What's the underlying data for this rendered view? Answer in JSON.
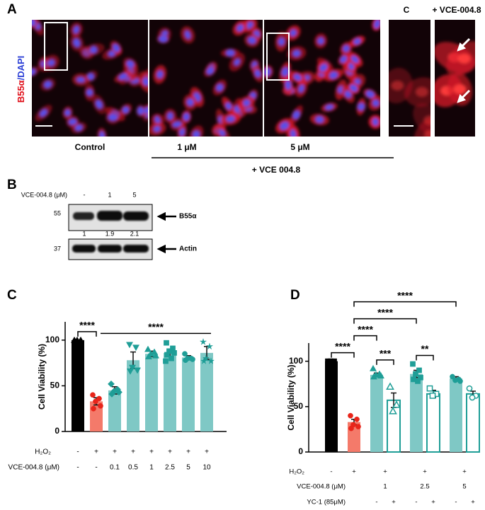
{
  "panel_a": {
    "label": "A",
    "stain": [
      "B55α",
      "/DAPI"
    ],
    "images": [
      "Control",
      "1 μM",
      "5 μM"
    ],
    "treatment": "+ VCE 004.8",
    "insets": [
      "C",
      "+ VCE-004.8"
    ]
  },
  "panel_b": {
    "label": "B",
    "dose_label": "VCE-004.8 (μM)",
    "lanes": [
      "-",
      "1",
      "5"
    ],
    "blots": [
      {
        "marker": 55,
        "target": "B55α",
        "quant": [
          1,
          1.9,
          2.1
        ]
      },
      {
        "marker": 37,
        "target": "Actin"
      }
    ]
  },
  "chart_data": [
    {
      "type": "bar",
      "panel": "C",
      "ylabel": "Cell Viability (%)",
      "ylim": [
        0,
        120
      ],
      "yticks": [
        0,
        50,
        100
      ],
      "rows": [
        "H₂O₂",
        "VCE-004.8 (μM)"
      ],
      "groups": [
        {
          "labels": [
            "-",
            "-"
          ],
          "bars": [
            {
              "value": 100,
              "error": 0,
              "color": "#000000",
              "point_color": "#000000",
              "hollow": false,
              "marker": "triangle-up",
              "points": [
                100,
                100,
                100
              ]
            }
          ]
        },
        {
          "labels": [
            "+",
            "-"
          ],
          "bars": [
            {
              "value": 33,
              "error": 4,
              "color": "#f47a6a",
              "point_color": "#e8251a",
              "hollow": false,
              "marker": "circle",
              "points": [
                40,
                36,
                33,
                28,
                25
              ]
            }
          ]
        },
        {
          "labels": [
            "+",
            "0.1"
          ],
          "bars": [
            {
              "value": 45,
              "error": 4,
              "color": "#7fc8c5",
              "point_color": "#1f9e97",
              "hollow": false,
              "marker": "diamond",
              "points": [
                52,
                46,
                44,
                43,
                41
              ]
            }
          ]
        },
        {
          "labels": [
            "+",
            "0.5"
          ],
          "bars": [
            {
              "value": 78,
              "error": 9,
              "color": "#7fc8c5",
              "point_color": "#1f9e97",
              "hollow": false,
              "marker": "triangle-down",
              "points": [
                95,
                92,
                70,
                67,
                66
              ]
            }
          ]
        },
        {
          "labels": [
            "+",
            "1"
          ],
          "bars": [
            {
              "value": 85,
              "error": 3,
              "color": "#7fc8c5",
              "point_color": "#1f9e97",
              "hollow": false,
              "marker": "triangle-up",
              "points": [
                90,
                87,
                85,
                83,
                82
              ]
            }
          ]
        },
        {
          "labels": [
            "+",
            "2.5"
          ],
          "bars": [
            {
              "value": 86,
              "error": 4,
              "color": "#7fc8c5",
              "point_color": "#1f9e97",
              "hollow": false,
              "marker": "square",
              "points": [
                97,
                91,
                88,
                86,
                84,
                80,
                77
              ]
            }
          ]
        },
        {
          "labels": [
            "+",
            "5"
          ],
          "bars": [
            {
              "value": 81,
              "error": 2,
              "color": "#7fc8c5",
              "point_color": "#1f9e97",
              "hollow": false,
              "marker": "circle",
              "points": [
                85,
                80,
                80,
                79,
                78
              ]
            }
          ]
        },
        {
          "labels": [
            "+",
            "10"
          ],
          "bars": [
            {
              "value": 86,
              "error": 7,
              "color": "#7fc8c5",
              "point_color": "#1f9e97",
              "hollow": false,
              "marker": "star",
              "points": [
                98,
                93,
                80,
                77,
                77
              ]
            }
          ]
        }
      ],
      "significance": [
        {
          "label": "****",
          "from": 0,
          "to": 1
        },
        {
          "label": "****",
          "from": 1,
          "to": 7,
          "ticks": false
        }
      ]
    },
    {
      "type": "bar",
      "panel": "D",
      "ylabel": "Cell Viability (%)",
      "ylim": [
        0,
        120
      ],
      "yticks": [
        0,
        50,
        100
      ],
      "rows": [
        "H₂O₂",
        "VCE-004.8 (μM)"
      ],
      "bar_row": "YC-1 (85μM)",
      "groups": [
        {
          "labels": [
            "-",
            null
          ],
          "bars": [
            {
              "label": null,
              "value": 100,
              "error": 0,
              "color": "#000000",
              "point_color": "#000000",
              "hollow": false,
              "marker": "square",
              "points": [
                100,
                100,
                100
              ]
            }
          ]
        },
        {
          "labels": [
            "+",
            null
          ],
          "bars": [
            {
              "label": null,
              "value": 33,
              "error": 3,
              "color": "#f47a6a",
              "point_color": "#e8251a",
              "hollow": false,
              "marker": "circle",
              "points": [
                40,
                36,
                30,
                28,
                26
              ]
            }
          ]
        },
        {
          "labels": [
            "+",
            "1"
          ],
          "bars": [
            {
              "label": "-",
              "value": 85,
              "error": 2,
              "color": "#7fc8c5",
              "point_color": "#1f9e97",
              "hollow": false,
              "marker": "triangle-up",
              "points": [
                92,
                86,
                85,
                84,
                83
              ]
            },
            {
              "label": "+",
              "value": 57,
              "error": 8,
              "color": "#1f9e97",
              "point_color": "#1f9e97",
              "hollow": true,
              "marker": "triangle-up",
              "points": [
                72,
                52,
                45
              ]
            }
          ]
        },
        {
          "labels": [
            "+",
            "2.5"
          ],
          "bars": [
            {
              "label": "-",
              "value": 86,
              "error": 4,
              "color": "#7fc8c5",
              "point_color": "#1f9e97",
              "hollow": false,
              "marker": "square",
              "points": [
                97,
                90,
                86,
                82,
                80,
                78
              ]
            },
            {
              "label": "+",
              "value": 64,
              "error": 4,
              "color": "#1f9e97",
              "point_color": "#1f9e97",
              "hollow": true,
              "marker": "square",
              "points": [
                70,
                64,
                62
              ]
            }
          ]
        },
        {
          "labels": [
            "+",
            "5"
          ],
          "bars": [
            {
              "label": "-",
              "value": 81,
              "error": 2,
              "color": "#7fc8c5",
              "point_color": "#1f9e97",
              "hollow": false,
              "marker": "circle",
              "points": [
                83,
                80,
                79,
                78
              ]
            },
            {
              "label": "+",
              "value": 64,
              "error": 3,
              "color": "#1f9e97",
              "point_color": "#1f9e97",
              "hollow": true,
              "marker": "circle",
              "points": [
                70,
                62,
                60
              ]
            }
          ]
        }
      ],
      "significance": [
        {
          "label": "****",
          "from": 0,
          "to": 1
        },
        {
          "label": "***",
          "from": 2,
          "to": 3
        },
        {
          "label": "**",
          "from": 4,
          "to": 5
        },
        {
          "label": "****",
          "from": 1,
          "to": 2
        },
        {
          "label": "****",
          "from": 1,
          "to": 4
        },
        {
          "label": "****",
          "from": 1,
          "to": 6
        }
      ]
    }
  ]
}
